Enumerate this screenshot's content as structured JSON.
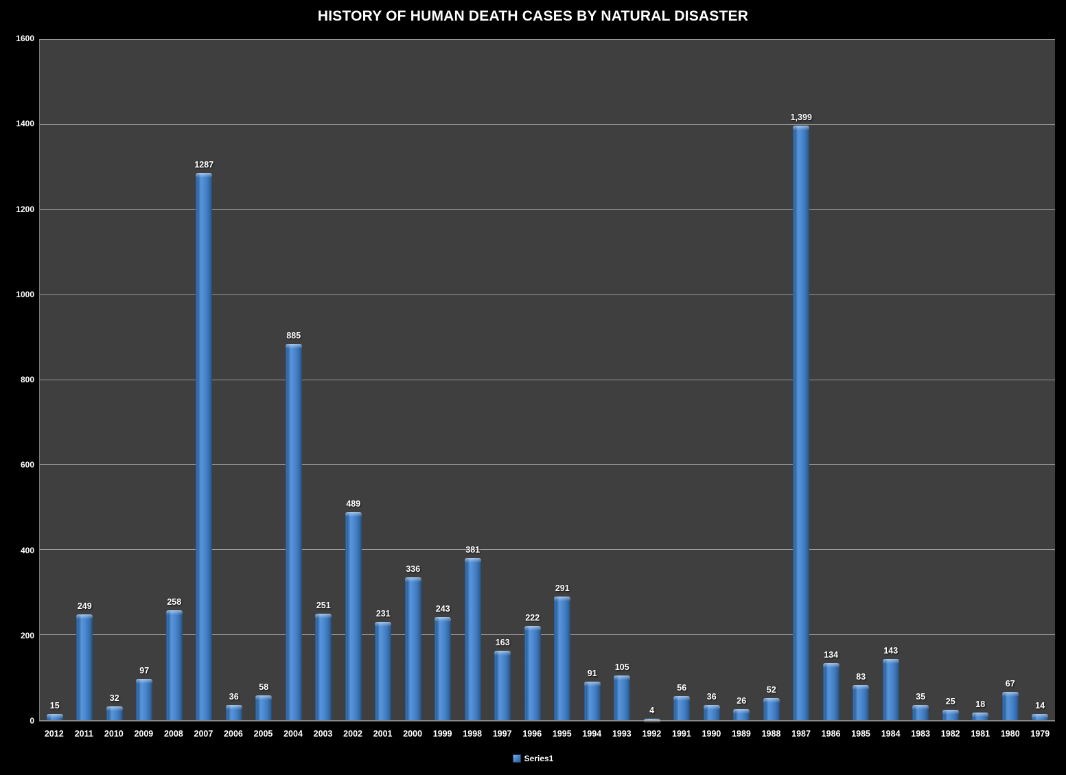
{
  "chart_data": {
    "type": "bar",
    "title": "HISTORY OF HUMAN DEATH CASES BY NATURAL DISASTER",
    "categories": [
      "2012",
      "2011",
      "2010",
      "2009",
      "2008",
      "2007",
      "2006",
      "2005",
      "2004",
      "2003",
      "2002",
      "2001",
      "2000",
      "1999",
      "1998",
      "1997",
      "1996",
      "1995",
      "1994",
      "1993",
      "1992",
      "1991",
      "1990",
      "1989",
      "1988",
      "1987",
      "1986",
      "1985",
      "1984",
      "1983",
      "1982",
      "1981",
      "1980",
      "1979"
    ],
    "values": [
      15,
      249,
      32,
      97,
      258,
      1287,
      36,
      58,
      885,
      251,
      489,
      231,
      336,
      243,
      381,
      163,
      222,
      291,
      91,
      105,
      4,
      56,
      36,
      26,
      52,
      1399,
      134,
      83,
      143,
      35,
      25,
      18,
      67,
      14
    ],
    "value_labels": [
      "15",
      "249",
      "32",
      "97",
      "258",
      "1287",
      "36",
      "58",
      "885",
      "251",
      "489",
      "231",
      "336",
      "243",
      "381",
      "163",
      "222",
      "291",
      "91",
      "105",
      "4",
      "56",
      "36",
      "26",
      "52",
      "1,399",
      "134",
      "83",
      "143",
      "35",
      "25",
      "18",
      "67",
      "14"
    ],
    "xlabel": "",
    "ylabel": "",
    "ylim": [
      0,
      1600
    ],
    "yticks": [
      0,
      200,
      400,
      600,
      800,
      1000,
      1200,
      1400,
      1600
    ],
    "grid": true,
    "legend": {
      "label": "Series1",
      "position": "bottom"
    },
    "colors": {
      "bar": "#4e8bd2",
      "bar_edge": "#27507f",
      "plot_background": "#3f3f3f",
      "page_background": "#000000",
      "gridline": "#9a9a9a",
      "text": "#ffffff"
    }
  }
}
